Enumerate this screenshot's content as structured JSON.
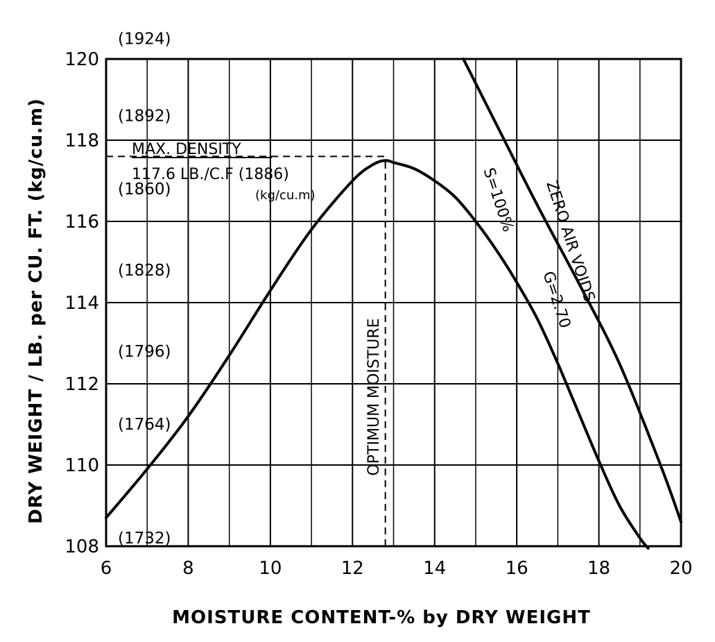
{
  "chart_data": {
    "type": "line",
    "xlabel": "MOISTURE CONTENT-% by DRY WEIGHT",
    "ylabel": "DRY WEIGHT / LB. per CU. FT. (kg/cu.m)",
    "xlim": [
      6,
      20
    ],
    "ylim": [
      108,
      120
    ],
    "x_ticks": [
      6,
      8,
      10,
      12,
      14,
      16,
      18,
      20
    ],
    "y_ticks": [
      108,
      110,
      112,
      114,
      116,
      118,
      120
    ],
    "y_ticks_metric": [
      {
        "y": 108,
        "label": "(1732)"
      },
      {
        "y": 110.8,
        "label": "(1764)"
      },
      {
        "y": 112.6,
        "label": "(1796)"
      },
      {
        "y": 114.6,
        "label": "(1828)"
      },
      {
        "y": 116.6,
        "label": "(1860)"
      },
      {
        "y": 118.4,
        "label": "(1892)"
      },
      {
        "y": 120.3,
        "label": "(1924)"
      }
    ],
    "grid": true,
    "series": [
      {
        "kind": "compaction",
        "x": [
          6,
          7,
          8,
          9,
          10,
          11,
          12,
          12.5,
          12.8,
          13,
          13.5,
          14,
          14.5,
          15,
          15.5,
          16,
          16.5,
          17,
          17.5,
          18,
          18.5,
          19,
          19.2
        ],
        "y": [
          108.7,
          109.9,
          111.2,
          112.7,
          114.3,
          115.8,
          117.0,
          117.4,
          117.5,
          117.45,
          117.3,
          117.0,
          116.6,
          116.0,
          115.3,
          114.5,
          113.6,
          112.5,
          111.3,
          110.1,
          109.0,
          108.2,
          107.95
        ]
      },
      {
        "kind": "zero-air-voids",
        "x": [
          14.7,
          15.5,
          16.5,
          17.5,
          18.5,
          19.5,
          20
        ],
        "y": [
          120,
          118.4,
          116.4,
          114.5,
          112.5,
          110.0,
          108.6
        ]
      }
    ],
    "reference_lines": [
      {
        "kind": "max-density",
        "y": 117.6,
        "x_from": 6,
        "x_to": 12.8
      },
      {
        "kind": "optimum-moisture",
        "x": 12.8,
        "y_from": 108,
        "y_to": 117.5
      }
    ],
    "annotations": {
      "max_density_title": "MAX. DENSITY",
      "max_density_value": "117.6 LB./C.F (1886)",
      "max_density_unit": "(kg/cu.m)",
      "optimum_moisture": "OPTIMUM MOISTURE",
      "s_label": "S=100%",
      "zav_label": "ZERO AIR VOIDS",
      "g_label": "G=2.70"
    }
  }
}
